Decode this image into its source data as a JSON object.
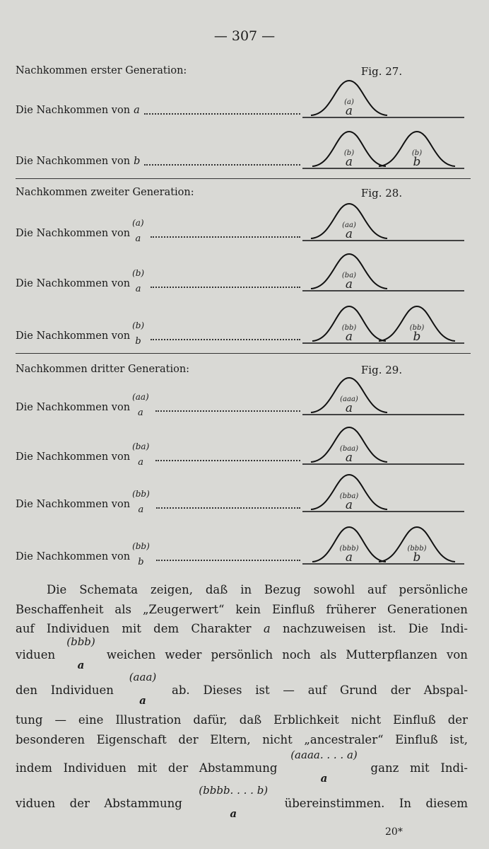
{
  "page_number": "— 307 —",
  "figures": [
    {
      "heading": "Nachkommen erster Generation:",
      "fig_label": "Fig. 27.",
      "rows": [
        {
          "prefix": "Die Nachkommen von",
          "var": "a",
          "curves": [
            {
              "top": "(a)",
              "bottom": "a"
            }
          ]
        },
        {
          "prefix": "Die Nachkommen von",
          "var": "b",
          "curves": [
            {
              "top": "(b)",
              "bottom": "a"
            },
            {
              "top": "(b)",
              "bottom": "b"
            }
          ]
        }
      ]
    },
    {
      "heading": "Nachkommen zweiter Generation:",
      "fig_label": "Fig. 28.",
      "rows": [
        {
          "prefix": "Die Nachkommen von",
          "sup": "(a)",
          "sub": "a",
          "curves": [
            {
              "top": "(aa)",
              "bottom": "a"
            }
          ]
        },
        {
          "prefix": "Die Nachkommen von",
          "sup": "(b)",
          "sub": "a",
          "curves": [
            {
              "top": "(ba)",
              "bottom": "a"
            }
          ]
        },
        {
          "prefix": "Die Nachkommen von",
          "sup": "(b)",
          "sub": "b",
          "curves": [
            {
              "top": "(bb)",
              "bottom": "a"
            },
            {
              "top": "(bb)",
              "bottom": "b"
            }
          ]
        }
      ]
    },
    {
      "heading": "Nachkommen dritter Generation:",
      "fig_label": "Fig. 29.",
      "rows": [
        {
          "prefix": "Die Nachkommen von",
          "sup": "(aa)",
          "sub": "a",
          "curves": [
            {
              "top": "(aaa)",
              "bottom": "a"
            }
          ]
        },
        {
          "prefix": "Die Nachkommen von",
          "sup": "(ba)",
          "sub": "a",
          "curves": [
            {
              "top": "(baa)",
              "bottom": "a"
            }
          ]
        },
        {
          "prefix": "Die Nachkommen von",
          "sup": "(bb)",
          "sub": "a",
          "curves": [
            {
              "top": "(bba)",
              "bottom": "a"
            }
          ]
        },
        {
          "prefix": "Die Nachkommen von",
          "sup": "(bb)",
          "sub": "b",
          "curves": [
            {
              "top": "(bbb)",
              "bottom": "a"
            },
            {
              "top": "(bbb)",
              "bottom": "b"
            }
          ]
        }
      ]
    }
  ],
  "paragraph": [
    [
      {
        "t": "Die Schemata zeigen, daß in Bezug sowohl auf persönliche"
      }
    ],
    [
      {
        "t": "Beschaffenheit als „Zeugerwert“ kein Einfluß früherer Generationen"
      }
    ],
    [
      {
        "t": "auf Individuen mit dem Charakter"
      },
      {
        "i": "a"
      },
      {
        "t": "nachzuweisen ist.  Die Indi-"
      }
    ],
    [
      {
        "t": "viduen"
      },
      {
        "sup": "(bbb)",
        "sub": "a"
      },
      {
        "t": "weichen weder persönlich noch als Mutterpflanzen von"
      }
    ],
    [
      {
        "t": "den Individuen"
      },
      {
        "sup": "(aaa)",
        "sub": "a"
      },
      {
        "t": "ab.  Dieses ist — auf Grund der Abspal-"
      }
    ],
    [
      {
        "t": "tung — eine Illustration dafür, daß Erblichkeit nicht Einfluß der"
      }
    ],
    [
      {
        "t": "besonderen Eigenschaft der Eltern, nicht „ancestraler“ Einfluß ist,"
      }
    ],
    [
      {
        "t": "indem Individuen mit der Abstammung"
      },
      {
        "sup": "(aaaa. . . . a)",
        "sub": "a"
      },
      {
        "t": "ganz mit Indi-"
      }
    ],
    [
      {
        "t": "viduen der Abstammung"
      },
      {
        "sup": "(bbbb. . . . b)",
        "sub": "a"
      },
      {
        "t": "übereinstimmen.   In diesem"
      }
    ]
  ],
  "footer_signature": "20*"
}
